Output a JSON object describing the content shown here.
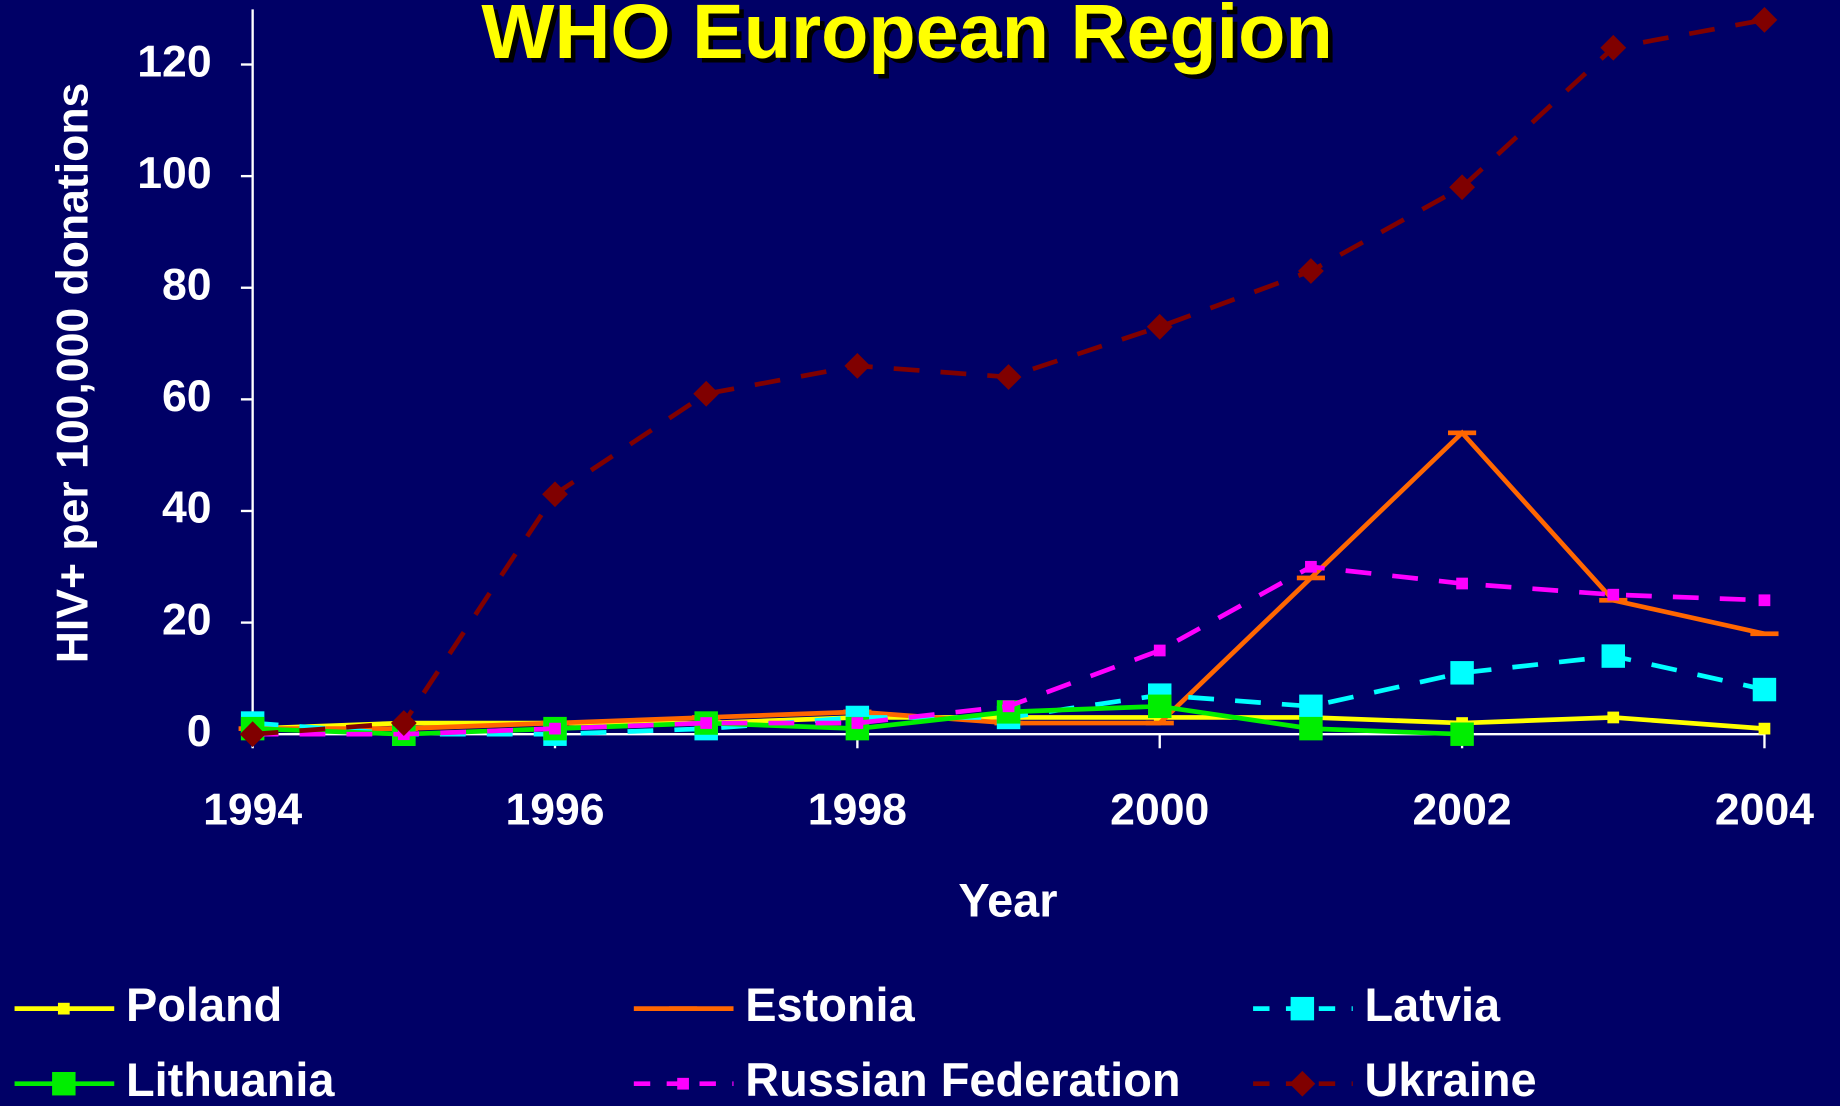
{
  "chart_data": {
    "type": "line",
    "title": "WHO European Region",
    "xlabel": "Year",
    "ylabel": "HIV+ per 100,000 donations",
    "x": [
      1994,
      1995,
      1996,
      1997,
      1998,
      1999,
      2000,
      2001,
      2002,
      2003,
      2004
    ],
    "xlim": [
      1994,
      2004
    ],
    "xticks": [
      1994,
      1996,
      1998,
      2000,
      2002,
      2004
    ],
    "ylim": [
      0,
      120
    ],
    "yticks": [
      0,
      20,
      40,
      60,
      80,
      100,
      120
    ],
    "background": "#000066",
    "series": [
      {
        "name": "Poland",
        "color": "#ffff00",
        "dash": "solid",
        "marker": "small-square",
        "values": [
          1,
          2,
          2,
          2,
          3,
          3,
          3,
          3,
          2,
          3,
          1
        ]
      },
      {
        "name": "Estonia",
        "color": "#ff6600",
        "dash": "solid",
        "marker": "bar",
        "values": [
          1,
          1,
          2,
          3,
          4,
          2,
          2,
          28,
          54,
          24,
          18
        ]
      },
      {
        "name": "Latvia",
        "color": "#00ffff",
        "dash": "dashed",
        "marker": "square",
        "values": [
          2,
          0,
          0,
          1,
          3,
          3,
          7,
          5,
          11,
          14,
          8
        ]
      },
      {
        "name": "Lithuania",
        "color": "#00ee00",
        "dash": "solid",
        "marker": "square",
        "values": [
          1,
          0,
          1,
          2,
          1,
          4,
          5,
          1,
          0,
          null,
          null
        ]
      },
      {
        "name": "Russian Federation",
        "color": "#ff00ff",
        "dash": "dashed",
        "marker": "small-square",
        "values": [
          0,
          0,
          1,
          2,
          2,
          5,
          15,
          30,
          27,
          25,
          24
        ]
      },
      {
        "name": "Ukraine",
        "color": "#800000",
        "dash": "dashed",
        "marker": "diamond",
        "values": [
          0,
          2,
          43,
          61,
          66,
          64,
          73,
          83,
          98,
          123,
          128
        ]
      }
    ]
  }
}
